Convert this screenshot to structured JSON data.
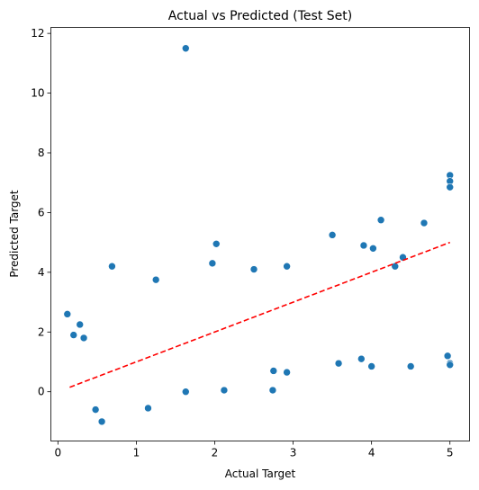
{
  "chart_data": {
    "type": "scatter",
    "title": "Actual vs Predicted (Test Set)",
    "xlabel": "Actual Target",
    "ylabel": "Predicted Target",
    "xlim": [
      -0.09,
      5.25
    ],
    "ylim": [
      -1.65,
      12.2
    ],
    "xticks": [
      0,
      1,
      2,
      3,
      4,
      5
    ],
    "yticks": [
      0,
      2,
      4,
      6,
      8,
      10,
      12
    ],
    "grid": false,
    "colors": {
      "points": "#1f77b4",
      "point_edge": "#ffffff",
      "reference_line": "#ff0000"
    },
    "reference_line": {
      "style": "dashed",
      "x": [
        0.15,
        5.0
      ],
      "y": [
        0.15,
        5.0
      ]
    },
    "notable_points": [
      {
        "x": 1.63,
        "y": 11.5
      },
      {
        "x": 0.56,
        "y": -1.0
      },
      {
        "x": 0.12,
        "y": 2.6
      },
      {
        "x": 0.2,
        "y": 1.9
      },
      {
        "x": 0.28,
        "y": 2.25
      },
      {
        "x": 0.33,
        "y": 1.8
      },
      {
        "x": 0.69,
        "y": 4.2
      },
      {
        "x": 1.25,
        "y": 3.75
      },
      {
        "x": 1.97,
        "y": 4.3
      },
      {
        "x": 2.02,
        "y": 4.95
      },
      {
        "x": 2.5,
        "y": 4.1
      },
      {
        "x": 2.92,
        "y": 4.2
      },
      {
        "x": 3.5,
        "y": 5.25
      },
      {
        "x": 4.12,
        "y": 5.75
      },
      {
        "x": 4.67,
        "y": 5.65
      },
      {
        "x": 3.58,
        "y": 0.95
      },
      {
        "x": 3.87,
        "y": 1.1
      },
      {
        "x": 4.0,
        "y": 0.85
      },
      {
        "x": 4.5,
        "y": 0.85
      },
      {
        "x": 2.74,
        "y": 0.05
      },
      {
        "x": 2.12,
        "y": 0.05
      },
      {
        "x": 1.63,
        "y": 0.0
      },
      {
        "x": 1.15,
        "y": -0.55
      },
      {
        "x": 0.48,
        "y": -0.6
      },
      {
        "x": 5.0,
        "y": 7.25
      },
      {
        "x": 5.0,
        "y": 7.05
      },
      {
        "x": 5.0,
        "y": 6.85
      },
      {
        "x": 5.0,
        "y": 0.95
      },
      {
        "x": 5.0,
        "y": 0.9
      },
      {
        "x": 2.75,
        "y": 0.7
      },
      {
        "x": 2.92,
        "y": 0.65
      },
      {
        "x": 4.97,
        "y": 1.2
      },
      {
        "x": 4.3,
        "y": 4.2
      },
      {
        "x": 4.4,
        "y": 4.5
      },
      {
        "x": 3.9,
        "y": 4.9
      },
      {
        "x": 4.02,
        "y": 4.8
      }
    ]
  }
}
